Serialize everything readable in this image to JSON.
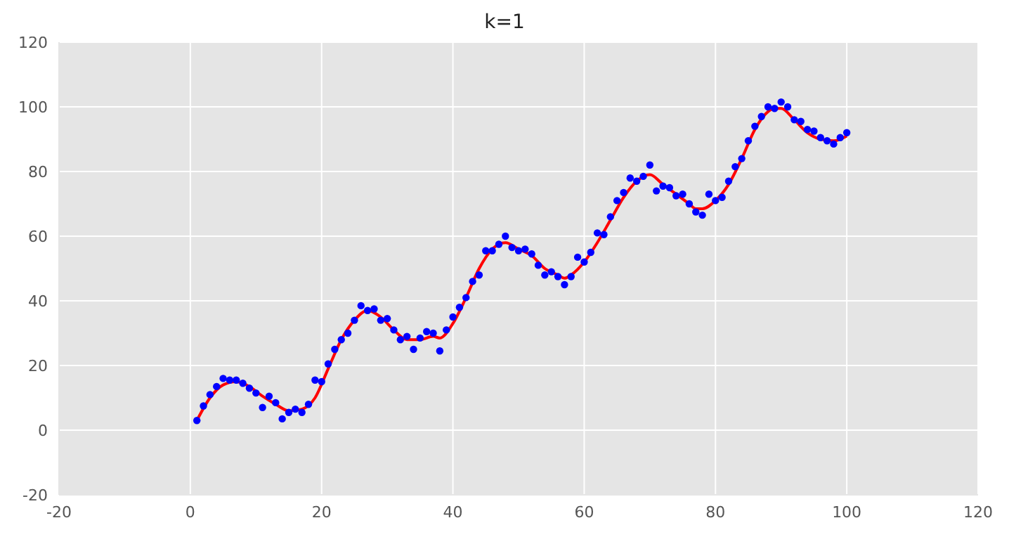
{
  "chart_data": {
    "type": "scatter",
    "title": "k=1",
    "xlim": [
      -20,
      120
    ],
    "xticks": [
      -20,
      0,
      20,
      40,
      60,
      80,
      100,
      120
    ],
    "ylim": [
      -20,
      120
    ],
    "yticks": [
      -20,
      0,
      20,
      40,
      60,
      80,
      100,
      120
    ],
    "grid": true,
    "legend": false,
    "series": [
      {
        "color": "#0000ff",
        "marker": "circle",
        "x": [
          1,
          2,
          3,
          4,
          5,
          6,
          7,
          8,
          9,
          10,
          11,
          12,
          13,
          14,
          15,
          16,
          17,
          18,
          19,
          20,
          21,
          22,
          23,
          24,
          25,
          26,
          27,
          28,
          29,
          30,
          31,
          32,
          33,
          34,
          35,
          36,
          37,
          38,
          39,
          40,
          41,
          42,
          43,
          44,
          45,
          46,
          47,
          48,
          49,
          50,
          51,
          52,
          53,
          54,
          55,
          56,
          57,
          58,
          59,
          60,
          61,
          62,
          63,
          64,
          65,
          66,
          67,
          68,
          69,
          70,
          71,
          72,
          73,
          74,
          75,
          76,
          77,
          78,
          79,
          80,
          81,
          82,
          83,
          84,
          85,
          86,
          87,
          88,
          89,
          90,
          91,
          92,
          93,
          94,
          95,
          96,
          97,
          98,
          99,
          100
        ],
        "values": [
          3,
          7.5,
          11,
          13.5,
          16,
          15.5,
          15.5,
          14.5,
          13,
          11.5,
          7,
          10.5,
          8.5,
          3.5,
          5.5,
          6.5,
          5.5,
          8,
          15.5,
          15,
          20.5,
          25,
          28,
          30,
          34,
          38.5,
          37,
          37.5,
          34,
          34.5,
          31,
          28,
          29,
          25,
          28.5,
          30.5,
          30,
          24.5,
          31,
          35,
          38,
          41,
          46,
          48,
          55.5,
          55.5,
          57.5,
          60,
          56.5,
          55.5,
          56,
          54.5,
          51,
          48,
          49,
          47.5,
          45,
          47.5,
          53.5,
          52,
          55,
          61,
          60.5,
          66,
          71,
          73.5,
          78,
          77,
          78.5,
          82,
          74,
          75.5,
          75,
          72.5,
          73,
          70,
          67.5,
          66.5,
          73,
          71,
          72,
          77,
          81.5,
          84,
          89.5,
          94,
          97,
          100,
          99.5,
          101.5,
          100,
          96,
          95.5,
          93,
          92.5,
          90.5,
          89.5,
          88.5,
          90.5,
          92
        ]
      },
      {
        "type": "line",
        "color": "#ff0000",
        "marker": "none",
        "line_style": "solid",
        "x": [
          1,
          3,
          5,
          7,
          9,
          11,
          13,
          15,
          17,
          19,
          21,
          23,
          25,
          27,
          29,
          31,
          33,
          35,
          37,
          38,
          40,
          42,
          44,
          46,
          48,
          50,
          52,
          54,
          56,
          57,
          58,
          60,
          62,
          64,
          66,
          68,
          70,
          72,
          74,
          76,
          77,
          78,
          80,
          82,
          84,
          86,
          88,
          89,
          90,
          92,
          94,
          96,
          98,
          100
        ],
        "values": [
          3,
          10,
          14,
          15,
          13.5,
          10.5,
          8,
          6,
          6.5,
          10,
          19,
          28,
          34,
          37,
          35,
          31,
          28,
          28,
          29,
          28.5,
          33,
          41,
          50,
          56,
          58,
          56,
          54,
          50,
          48,
          47,
          48,
          52,
          58,
          65,
          72,
          77,
          79,
          76,
          73,
          70,
          68.5,
          68.5,
          71,
          76,
          84,
          93,
          98.5,
          99.5,
          99.5,
          96,
          92,
          90,
          89.5,
          91
        ]
      }
    ]
  }
}
